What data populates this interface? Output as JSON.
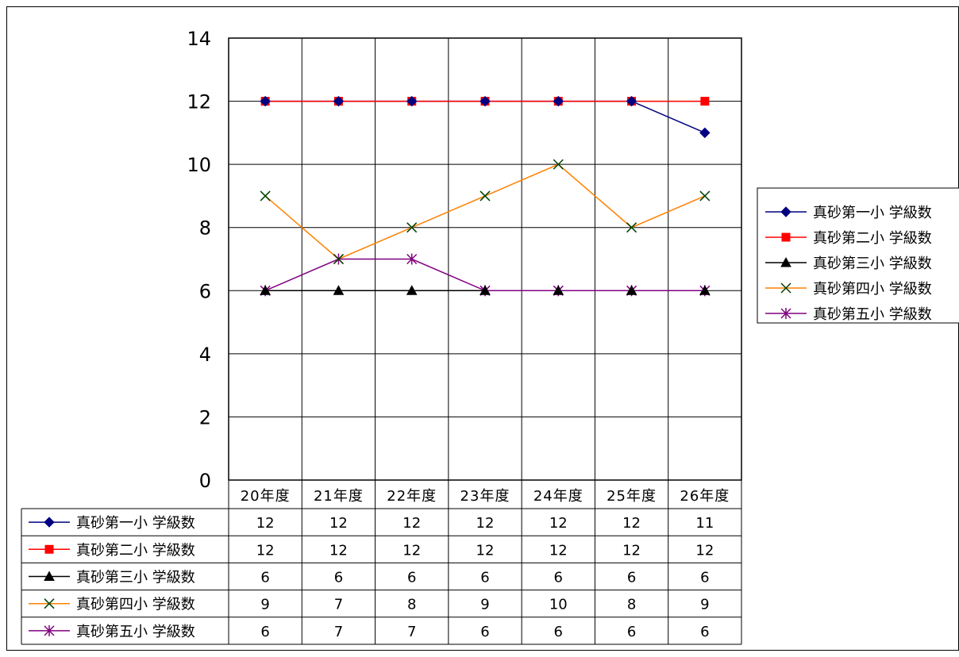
{
  "chart_data": {
    "type": "line",
    "categories": [
      "20年度",
      "21年度",
      "22年度",
      "23年度",
      "24年度",
      "25年度",
      "26年度"
    ],
    "ylim": [
      0,
      14
    ],
    "yticks": [
      0,
      2,
      4,
      6,
      8,
      10,
      12,
      14
    ],
    "ytick_labels": [
      "0",
      "2",
      "4",
      "6",
      "8",
      "10",
      "12",
      "14"
    ],
    "grid": true,
    "legend_position": "right",
    "series": [
      {
        "name": "真砂第一小 学級数",
        "values": [
          12,
          12,
          12,
          12,
          12,
          12,
          11
        ],
        "color": "#000080",
        "marker": "diamond"
      },
      {
        "name": "真砂第二小 学級数",
        "values": [
          12,
          12,
          12,
          12,
          12,
          12,
          12
        ],
        "color": "#ff0000",
        "marker": "square"
      },
      {
        "name": "真砂第三小 学級数",
        "values": [
          6,
          6,
          6,
          6,
          6,
          6,
          6
        ],
        "color": "#000000",
        "marker": "triangle"
      },
      {
        "name": "真砂第四小 学級数",
        "values": [
          9,
          7,
          8,
          9,
          10,
          8,
          9
        ],
        "color": "#ff8000",
        "marker": "x",
        "marker_color": "#004000"
      },
      {
        "name": "真砂第五小 学級数",
        "values": [
          6,
          7,
          7,
          6,
          6,
          6,
          6
        ],
        "color": "#800080",
        "marker": "star"
      }
    ],
    "data_table": true
  }
}
